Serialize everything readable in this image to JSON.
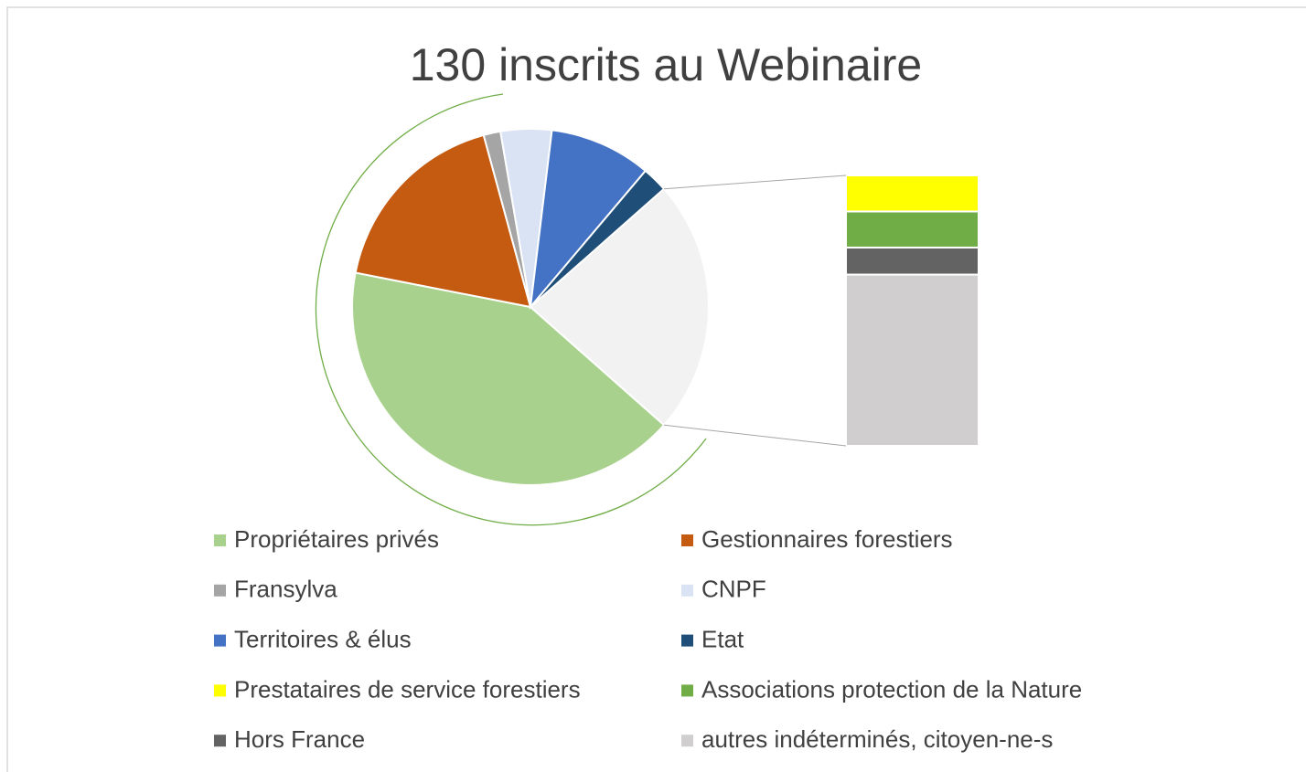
{
  "chart_data": {
    "type": "bar-of-pie",
    "title": "130 inscrits au Webinaire",
    "categories": [
      "Propriétaires privés",
      "Gestionnaires forestiers",
      "Fransylva",
      "CNPF",
      "Territoires & élus",
      "Etat",
      "Prestataires de service forestiers",
      "Associations protection de la Nature",
      "Hors France",
      "autres indéterminés, citoyen-ne-s"
    ],
    "values": [
      54,
      23,
      2,
      6,
      12,
      3,
      4,
      4,
      3,
      19
    ],
    "colors": [
      "#a9d18e",
      "#c55a11",
      "#a5a5a5",
      "#dae3f3",
      "#4472c4",
      "#1f4e79",
      "#ffff00",
      "#70ad47",
      "#636363",
      "#d0cece"
    ],
    "other_color": "#f2f2f2",
    "secondary_count": 4,
    "legend": "bottom"
  }
}
